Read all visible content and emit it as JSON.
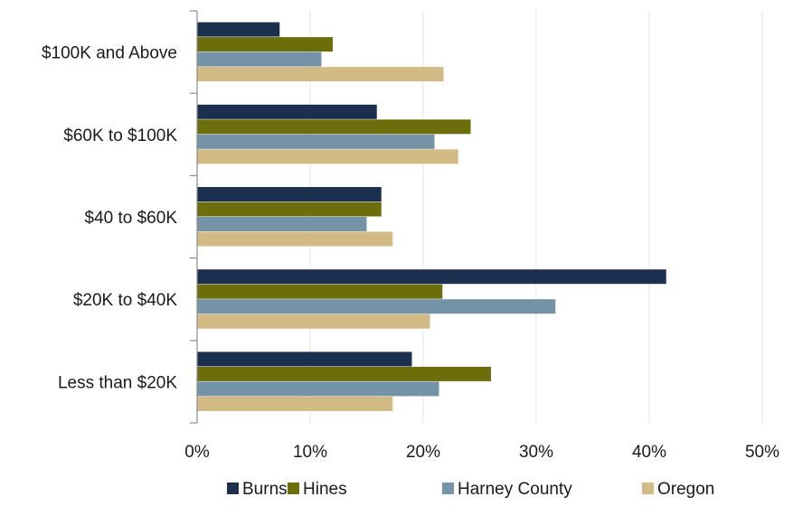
{
  "chart_data": {
    "type": "bar",
    "orientation": "horizontal",
    "title": "",
    "xlabel": "",
    "ylabel": "",
    "categories": [
      "$100K and Above",
      "$60K to $100K",
      "$40 to $60K",
      "$20K to $40K",
      "Less than $20K"
    ],
    "series": [
      {
        "name": "Burns",
        "color": "#1b2f4f",
        "values": [
          7.3,
          15.9,
          16.3,
          41.5,
          19.0
        ]
      },
      {
        "name": "Hines",
        "color": "#6b6e0a",
        "values": [
          12.0,
          24.2,
          16.3,
          21.7,
          26.0
        ]
      },
      {
        "name": "Harney County",
        "color": "#7593a6",
        "values": [
          11.0,
          21.0,
          15.0,
          31.7,
          21.4
        ]
      },
      {
        "name": "Oregon",
        "color": "#d1ba83",
        "values": [
          21.8,
          23.1,
          17.3,
          20.6,
          17.3
        ]
      }
    ],
    "xlim": [
      0,
      50
    ],
    "xticks": [
      "0%",
      "10%",
      "20%",
      "30%",
      "40%",
      "50%"
    ],
    "grid": true,
    "legend_position": "bottom"
  }
}
